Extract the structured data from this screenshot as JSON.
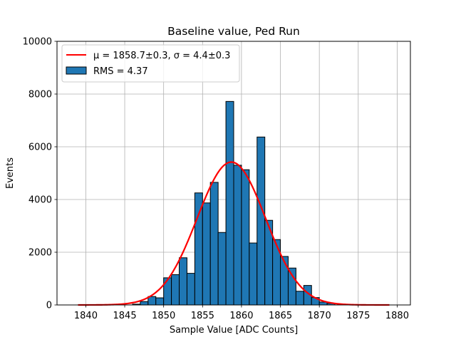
{
  "chart_data": {
    "type": "bar",
    "title": "Baseline value, Ped Run",
    "xlabel": "Sample Value [ADC Counts]",
    "ylabel": "Events",
    "xlim": [
      1836.3,
      1881.7
    ],
    "ylim": [
      0,
      10000
    ],
    "xticks": [
      1840,
      1845,
      1850,
      1855,
      1860,
      1865,
      1870,
      1875,
      1880
    ],
    "yticks": [
      0,
      2000,
      4000,
      6000,
      8000,
      10000
    ],
    "grid": true,
    "legend_position": "top-left",
    "bar_color": "#1f77b4",
    "fit_color": "#ff0000",
    "bins": [
      {
        "x0": 1846.0,
        "x1": 1847.0,
        "value": 30
      },
      {
        "x0": 1847.0,
        "x1": 1848.0,
        "value": 130
      },
      {
        "x0": 1848.0,
        "x1": 1849.0,
        "value": 320
      },
      {
        "x0": 1849.0,
        "x1": 1850.0,
        "value": 270
      },
      {
        "x0": 1850.0,
        "x1": 1851.0,
        "value": 1030
      },
      {
        "x0": 1851.0,
        "x1": 1852.0,
        "value": 1150
      },
      {
        "x0": 1852.0,
        "x1": 1853.0,
        "value": 1790
      },
      {
        "x0": 1853.0,
        "x1": 1854.0,
        "value": 1200
      },
      {
        "x0": 1854.0,
        "x1": 1855.0,
        "value": 4250
      },
      {
        "x0": 1855.0,
        "x1": 1856.0,
        "value": 3870
      },
      {
        "x0": 1856.0,
        "x1": 1857.0,
        "value": 4650
      },
      {
        "x0": 1857.0,
        "x1": 1858.0,
        "value": 2750
      },
      {
        "x0": 1858.0,
        "x1": 1859.0,
        "value": 7720
      },
      {
        "x0": 1859.0,
        "x1": 1860.0,
        "value": 5300
      },
      {
        "x0": 1860.0,
        "x1": 1861.0,
        "value": 5130
      },
      {
        "x0": 1861.0,
        "x1": 1862.0,
        "value": 2350
      },
      {
        "x0": 1862.0,
        "x1": 1863.0,
        "value": 6370
      },
      {
        "x0": 1863.0,
        "x1": 1864.0,
        "value": 3210
      },
      {
        "x0": 1864.0,
        "x1": 1865.0,
        "value": 2480
      },
      {
        "x0": 1865.0,
        "x1": 1866.0,
        "value": 1840
      },
      {
        "x0": 1866.0,
        "x1": 1867.0,
        "value": 1400
      },
      {
        "x0": 1867.0,
        "x1": 1868.0,
        "value": 520
      },
      {
        "x0": 1868.0,
        "x1": 1869.0,
        "value": 740
      },
      {
        "x0": 1869.0,
        "x1": 1870.0,
        "value": 280
      },
      {
        "x0": 1870.0,
        "x1": 1871.0,
        "value": 110
      },
      {
        "x0": 1871.0,
        "x1": 1872.0,
        "value": 60
      }
    ],
    "fit": {
      "type": "gaussian",
      "mu": 1858.7,
      "sigma": 4.4,
      "amplitude": 5420,
      "x_range": [
        1839,
        1879
      ]
    },
    "legend": {
      "fit_label": "μ = 1858.7±0.3, σ = 4.4±0.3",
      "hist_label": "RMS = 4.37"
    }
  }
}
